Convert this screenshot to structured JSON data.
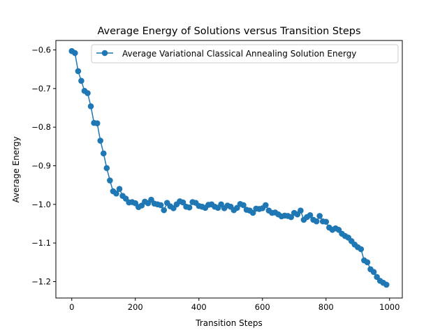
{
  "chart_data": {
    "type": "line",
    "title": "Average Energy of Solutions versus Transition Steps",
    "xlabel": "Transition Steps",
    "ylabel": "Average Energy",
    "xlim": [
      -50,
      1040
    ],
    "ylim": [
      -1.2425,
      -0.5755
    ],
    "xticks": [
      0,
      200,
      400,
      600,
      800,
      1000
    ],
    "xtick_labels": [
      "0",
      "200",
      "400",
      "600",
      "800",
      "1000"
    ],
    "yticks": [
      -0.6,
      -0.7,
      -0.8,
      -0.9,
      -1.0,
      -1.1,
      -1.2
    ],
    "ytick_labels": [
      "−0.6",
      "−0.7",
      "−0.8",
      "−0.9",
      "−1.0",
      "−1.1",
      "−1.2"
    ],
    "grid": false,
    "legend_position": "top-right",
    "colors": {
      "series": "#1f77b4"
    },
    "series": [
      {
        "name": "Average Variational Classical Annealing Solution Energy",
        "marker": "circle",
        "x": [
          0,
          10,
          20,
          30,
          40,
          50,
          60,
          70,
          80,
          90,
          100,
          110,
          120,
          130,
          140,
          150,
          160,
          170,
          180,
          190,
          200,
          210,
          220,
          230,
          240,
          250,
          260,
          270,
          280,
          290,
          300,
          310,
          320,
          330,
          340,
          350,
          360,
          370,
          380,
          390,
          400,
          410,
          420,
          430,
          440,
          450,
          460,
          470,
          480,
          490,
          500,
          510,
          520,
          530,
          540,
          550,
          560,
          570,
          580,
          590,
          600,
          610,
          620,
          630,
          640,
          650,
          660,
          670,
          680,
          690,
          700,
          710,
          720,
          730,
          740,
          750,
          760,
          770,
          780,
          790,
          800,
          810,
          820,
          830,
          840,
          850,
          860,
          870,
          880,
          890,
          900,
          910,
          920,
          930,
          940,
          950,
          960,
          970,
          980,
          990
        ],
        "y": [
          -0.603,
          -0.608,
          -0.655,
          -0.68,
          -0.706,
          -0.712,
          -0.746,
          -0.789,
          -0.79,
          -0.835,
          -0.868,
          -0.906,
          -0.938,
          -0.966,
          -0.972,
          -0.96,
          -0.978,
          -0.985,
          -0.995,
          -0.994,
          -0.997,
          -1.007,
          -1.003,
          -0.993,
          -0.997,
          -0.988,
          -0.998,
          -1.0,
          -1.002,
          -1.015,
          -0.996,
          -1.005,
          -1.01,
          -1.0,
          -0.992,
          -0.995,
          -1.006,
          -1.008,
          -0.994,
          -0.996,
          -1.004,
          -1.006,
          -1.009,
          -1.001,
          -1.0,
          -1.006,
          -1.009,
          -1.0,
          -1.01,
          -1.003,
          -1.006,
          -1.015,
          -1.009,
          -0.999,
          -1.002,
          -1.014,
          -1.016,
          -1.022,
          -1.011,
          -1.012,
          -1.01,
          -1.002,
          -1.016,
          -1.022,
          -1.021,
          -1.026,
          -1.031,
          -1.029,
          -1.03,
          -1.033,
          -1.022,
          -1.026,
          -1.016,
          -1.04,
          -1.033,
          -1.028,
          -1.04,
          -1.044,
          -1.03,
          -1.044,
          -1.045,
          -1.06,
          -1.066,
          -1.062,
          -1.066,
          -1.076,
          -1.082,
          -1.086,
          -1.095,
          -1.104,
          -1.111,
          -1.116,
          -1.145,
          -1.15,
          -1.168,
          -1.175,
          -1.188,
          -1.198,
          -1.203,
          -1.208
        ]
      }
    ]
  }
}
